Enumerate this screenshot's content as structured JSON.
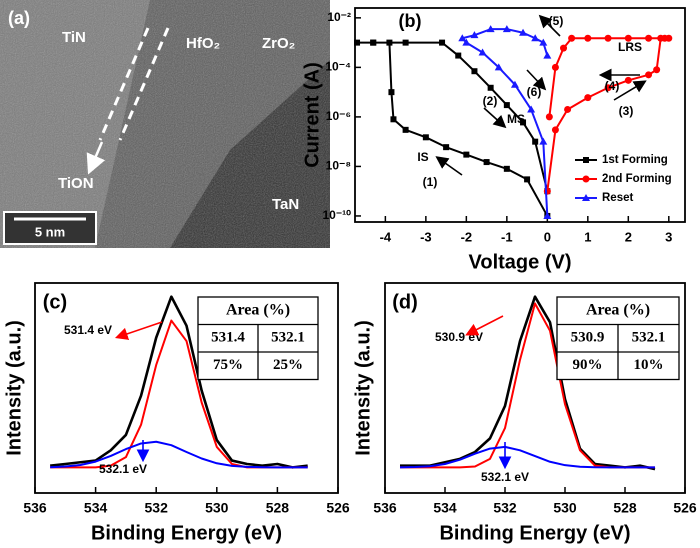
{
  "figure_a": {
    "panel_label": "(a)",
    "labels": [
      "TiN",
      "HfO₂",
      "ZrO₂",
      "TiON",
      "TaN"
    ],
    "scale_bar": "5 nm"
  },
  "chart_data": [
    {
      "type": "line",
      "panel_label": "(b)",
      "xlabel": "Voltage (V)",
      "ylabel": "Current (A)",
      "xlim": [
        -4.75,
        3.4
      ],
      "xticks": [
        -4,
        -3,
        -2,
        -1,
        0,
        1,
        2,
        3
      ],
      "ylim": [
        5.7e-11,
        0.025
      ],
      "yscale": "log",
      "yticks": [
        {
          "value": 0.01,
          "label": "10⁻²"
        },
        {
          "value": 0.0001,
          "label": "10⁻⁴"
        },
        {
          "value": 1e-06,
          "label": "10⁻⁶"
        },
        {
          "value": 1e-08,
          "label": "10⁻⁸"
        },
        {
          "value": 1e-10,
          "label": "10⁻¹⁰"
        }
      ],
      "legend": "lower right",
      "series": [
        {
          "name": "1st Forming",
          "color": "#000000",
          "marker": "square",
          "x": [
            0,
            -0.5,
            -1,
            -1.5,
            -2,
            -2.5,
            -3,
            -3.5,
            -3.8,
            -3.85,
            -3.9,
            -4.3,
            -4.7,
            -4.3,
            -3.5,
            -2.6,
            -2.2,
            -1.8,
            -1.4,
            -1.0,
            -0.6,
            -0.3,
            0
          ],
          "values": [
            1e-10,
            3e-09,
            8e-09,
            1.5e-08,
            3e-08,
            6e-08,
            1.5e-07,
            3e-07,
            8e-07,
            1e-05,
            0.001,
            0.001,
            0.001,
            0.001,
            0.001,
            0.001,
            0.0003,
            7e-05,
            1.5e-05,
            3e-06,
            6e-07,
            1e-07,
            1e-09
          ]
        },
        {
          "name": "2nd Forming",
          "color": "#ff0000",
          "marker": "circle",
          "x": [
            0,
            0.2,
            0.5,
            1,
            1.5,
            2,
            2.5,
            2.7,
            2.8,
            2.9,
            3.0,
            2.5,
            2,
            1.5,
            1,
            0.6,
            0.4,
            0.2,
            0.05
          ],
          "values": [
            1e-09,
            3e-07,
            2e-06,
            6e-06,
            1.5e-05,
            3e-05,
            5e-05,
            8e-05,
            0.0015,
            0.0015,
            0.0015,
            0.0015,
            0.0015,
            0.0015,
            0.0015,
            0.0015,
            0.0006,
            0.0001,
            1e-06
          ]
        },
        {
          "name": "Reset",
          "color": "#1a1aff",
          "marker": "triangle",
          "x": [
            0,
            -0.1,
            -0.3,
            -0.6,
            -1.0,
            -1.4,
            -1.8,
            -2.1,
            -2.0,
            -1.6,
            -1.2,
            -0.8,
            -0.4,
            -0.1,
            0
          ],
          "values": [
            0.0003,
            0.001,
            0.0015,
            0.0025,
            0.0035,
            0.0035,
            0.002,
            0.0015,
            0.001,
            0.0004,
            0.0001,
            2e-05,
            2e-06,
            1e-07,
            1e-10
          ]
        }
      ],
      "annotations": [
        "LRS",
        "(5)",
        "(4)",
        "(6)",
        "(2)",
        "MS",
        "(3)",
        "IS",
        "(1)"
      ]
    },
    {
      "type": "line",
      "panel_label": "(c)",
      "xlabel": "Binding Energy (eV)",
      "ylabel": "Intensity (a.u.)",
      "xlim": [
        536,
        526
      ],
      "xticks": [
        536,
        534,
        532,
        530,
        528,
        526
      ],
      "ylim": [
        -0.15,
        1.08
      ],
      "x": [
        535.5,
        535,
        534.5,
        534,
        533.5,
        533,
        532.5,
        532,
        531.5,
        531,
        530.5,
        530,
        529.5,
        529,
        528.5,
        528,
        527.5,
        527
      ],
      "series": [
        {
          "color": "#000000",
          "values": [
            0.01,
            0.02,
            0.03,
            0.04,
            0.1,
            0.19,
            0.42,
            0.76,
            1.0,
            0.83,
            0.45,
            0.16,
            0.04,
            0.02,
            0.01,
            0.02,
            0.0,
            0.01
          ]
        },
        {
          "color": "#ff0000",
          "values": [
            0,
            0,
            0,
            0,
            0.01,
            0.06,
            0.25,
            0.6,
            0.86,
            0.74,
            0.38,
            0.12,
            0.02,
            0,
            0,
            0,
            0,
            0
          ]
        },
        {
          "color": "#0000ff",
          "values": [
            0.001,
            0.005,
            0.014,
            0.034,
            0.067,
            0.107,
            0.14,
            0.15,
            0.13,
            0.09,
            0.052,
            0.024,
            0.009,
            0.003,
            0.001,
            0,
            0,
            0
          ]
        }
      ],
      "annotations": [
        "531.4 eV",
        "532.1 eV"
      ],
      "table": {
        "header": "Area (%)",
        "rows": [
          [
            "531.4",
            "532.1"
          ],
          [
            "75%",
            "25%"
          ]
        ]
      }
    },
    {
      "type": "line",
      "panel_label": "(d)",
      "xlabel": "Binding Energy (eV)",
      "ylabel": "Intensity (a.u.)",
      "xlim": [
        536,
        526
      ],
      "xticks": [
        536,
        534,
        532,
        530,
        528,
        526
      ],
      "ylim": [
        -0.15,
        1.08
      ],
      "x": [
        535.5,
        535,
        534.5,
        534,
        533.5,
        533,
        532.5,
        532,
        531.5,
        531,
        530.5,
        530,
        529.5,
        529,
        528.5,
        528,
        527.5,
        527
      ],
      "series": [
        {
          "color": "#000000",
          "values": [
            0.01,
            0.01,
            0.01,
            0.03,
            0.05,
            0.09,
            0.17,
            0.36,
            0.74,
            1.0,
            0.85,
            0.4,
            0.11,
            0.02,
            0.01,
            0.0,
            0.01,
            -0.01
          ]
        },
        {
          "color": "#ff0000",
          "values": [
            0,
            0,
            0,
            0,
            0,
            0.005,
            0.05,
            0.23,
            0.63,
            0.96,
            0.8,
            0.37,
            0.1,
            0.01,
            0,
            0,
            0,
            0
          ]
        },
        {
          "color": "#0000ff",
          "values": [
            0,
            0.002,
            0.007,
            0.02,
            0.045,
            0.08,
            0.11,
            0.12,
            0.1,
            0.066,
            0.033,
            0.013,
            0.004,
            0.001,
            0,
            0,
            0,
            0
          ]
        }
      ],
      "annotations": [
        "530.9 eV",
        "532.1 eV"
      ],
      "table": {
        "header": "Area (%)",
        "rows": [
          [
            "530.9",
            "532.1"
          ],
          [
            "90%",
            "10%"
          ]
        ]
      }
    }
  ]
}
